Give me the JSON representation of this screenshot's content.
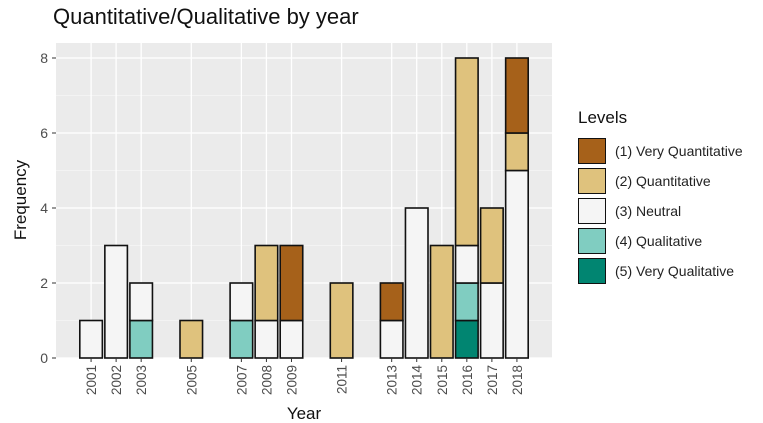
{
  "chart_data": {
    "type": "bar",
    "stacked": true,
    "title": "Quantitative/Qualitative by year",
    "xlabel": "Year",
    "ylabel": "Frequency",
    "ylim": [
      0,
      8.4
    ],
    "yticks": [
      0,
      2,
      4,
      6,
      8
    ],
    "grid": true,
    "legend": {
      "title": "Levels",
      "position": "right"
    },
    "categories": [
      "2001",
      "2002",
      "2003",
      "2005",
      "2007",
      "2008",
      "2009",
      "2011",
      "2013",
      "2014",
      "2015",
      "2016",
      "2017",
      "2018"
    ],
    "series": [
      {
        "name": "(1) Very Quantitative",
        "color": "#A6611A",
        "values": [
          0,
          0,
          0,
          0,
          0,
          0,
          2,
          0,
          1,
          0,
          0,
          0,
          0,
          2
        ]
      },
      {
        "name": "(2) Quantitative",
        "color": "#DFC27D",
        "values": [
          0,
          0,
          0,
          1,
          0,
          2,
          0,
          2,
          0,
          0,
          3,
          5,
          2,
          1
        ]
      },
      {
        "name": "(3) Neutral",
        "color": "#F5F5F5",
        "values": [
          1,
          3,
          1,
          0,
          1,
          1,
          1,
          0,
          1,
          4,
          0,
          1,
          2,
          5
        ]
      },
      {
        "name": "(4) Qualitative",
        "color": "#80CDC1",
        "values": [
          0,
          0,
          1,
          0,
          1,
          0,
          0,
          0,
          0,
          0,
          0,
          1,
          0,
          0
        ]
      },
      {
        "name": "(5) Very Qualitative",
        "color": "#018571",
        "values": [
          0,
          0,
          0,
          0,
          0,
          0,
          0,
          0,
          0,
          0,
          0,
          1,
          0,
          0
        ]
      }
    ]
  }
}
